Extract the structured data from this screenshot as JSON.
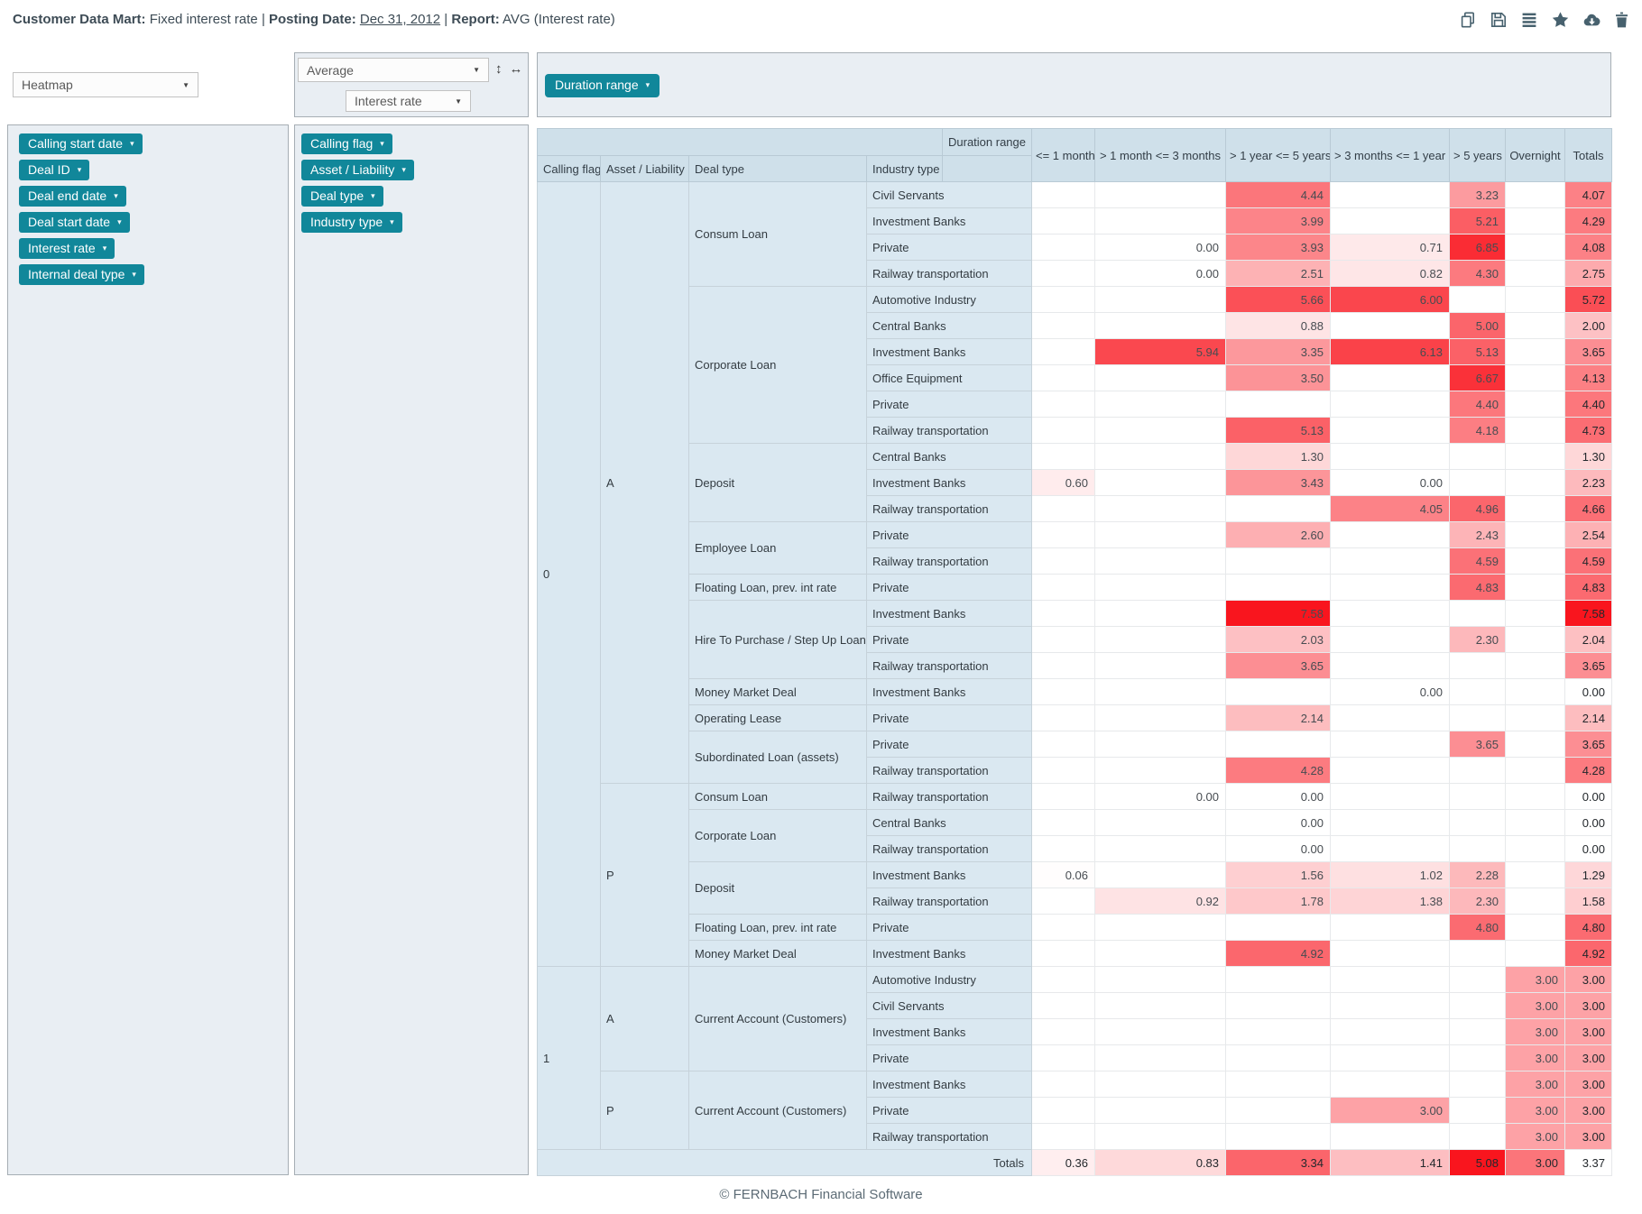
{
  "title": {
    "dataset_label": "Customer Data Mart:",
    "dataset_value": "Fixed interest rate",
    "separator": "|",
    "posting_date_label": "Posting Date:",
    "posting_date_value": "Dec 31, 2012",
    "report_label": "Report:",
    "report_value": "AVG (Interest rate)"
  },
  "toolbar_icons": [
    "copy-icon",
    "save-icon",
    "list-view-icon",
    "favorite-icon",
    "download-icon",
    "delete-icon"
  ],
  "controls": {
    "view_type": "Heatmap",
    "aggregation": "Average",
    "measure": "Interest rate",
    "resize_vertical_glyph": "↕",
    "resize_horizontal_glyph": "↔",
    "select_caret_glyph": "▼",
    "chip_caret_glyph": "▾"
  },
  "row_fields_panel": {
    "chips": [
      "Calling start date",
      "Deal ID",
      "Deal end date",
      "Deal start date",
      "Interest rate",
      "Internal deal type"
    ]
  },
  "pivot_fields_panel": {
    "chips": [
      "Calling flag",
      "Asset / Liability",
      "Deal type",
      "Industry type"
    ]
  },
  "column_fields_panel": {
    "chip": "Duration range"
  },
  "colors": {
    "accent_teal": "#11879a",
    "heat_red_max": "#f9151e",
    "header_blue": "#cfe0ea",
    "label_blue": "#dae8f1",
    "panel_gray": "#e9eef3",
    "icon_slate": "#47616e"
  },
  "chart_data": {
    "type": "heatmap",
    "title": "AVG (Interest rate)",
    "corner_label": "Duration range",
    "row_dimensions": [
      "Calling flag",
      "Asset / Liability",
      "Deal type",
      "Industry type"
    ],
    "columns": [
      "<= 1 month",
      "> 1 month <= 3 months",
      "> 1 year <= 5 years",
      "> 3 months <= 1 year",
      "> 5 years",
      "Overnight",
      "Totals"
    ],
    "heat_scale": {
      "min": 0,
      "max": 7.58
    },
    "rows": [
      [
        "0",
        "A",
        "Consum Loan",
        "Civil Servants",
        null,
        null,
        4.44,
        null,
        3.23,
        null,
        4.07
      ],
      [
        "0",
        "A",
        "Consum Loan",
        "Investment Banks",
        null,
        null,
        3.99,
        null,
        5.21,
        null,
        4.29
      ],
      [
        "0",
        "A",
        "Consum Loan",
        "Private",
        null,
        0.0,
        3.93,
        0.71,
        6.85,
        null,
        4.08
      ],
      [
        "0",
        "A",
        "Consum Loan",
        "Railway transportation",
        null,
        0.0,
        2.51,
        0.82,
        4.3,
        null,
        2.75
      ],
      [
        "0",
        "A",
        "Corporate Loan",
        "Automotive Industry",
        null,
        null,
        5.66,
        6.0,
        null,
        null,
        5.72
      ],
      [
        "0",
        "A",
        "Corporate Loan",
        "Central Banks",
        null,
        null,
        0.88,
        null,
        5.0,
        null,
        2.0
      ],
      [
        "0",
        "A",
        "Corporate Loan",
        "Investment Banks",
        null,
        5.94,
        3.35,
        6.13,
        5.13,
        null,
        3.65
      ],
      [
        "0",
        "A",
        "Corporate Loan",
        "Office Equipment",
        null,
        null,
        3.5,
        null,
        6.67,
        null,
        4.13
      ],
      [
        "0",
        "A",
        "Corporate Loan",
        "Private",
        null,
        null,
        null,
        null,
        4.4,
        null,
        4.4
      ],
      [
        "0",
        "A",
        "Corporate Loan",
        "Railway transportation",
        null,
        null,
        5.13,
        null,
        4.18,
        null,
        4.73
      ],
      [
        "0",
        "A",
        "Deposit",
        "Central Banks",
        null,
        null,
        1.3,
        null,
        null,
        null,
        1.3
      ],
      [
        "0",
        "A",
        "Deposit",
        "Investment Banks",
        0.6,
        null,
        3.43,
        0.0,
        null,
        null,
        2.23
      ],
      [
        "0",
        "A",
        "Deposit",
        "Railway transportation",
        null,
        null,
        null,
        4.05,
        4.96,
        null,
        4.66
      ],
      [
        "0",
        "A",
        "Employee Loan",
        "Private",
        null,
        null,
        2.6,
        null,
        2.43,
        null,
        2.54
      ],
      [
        "0",
        "A",
        "Employee Loan",
        "Railway transportation",
        null,
        null,
        null,
        null,
        4.59,
        null,
        4.59
      ],
      [
        "0",
        "A",
        "Floating Loan, prev. int rate",
        "Private",
        null,
        null,
        null,
        null,
        4.83,
        null,
        4.83
      ],
      [
        "0",
        "A",
        "Hire To Purchase / Step Up Loan",
        "Investment Banks",
        null,
        null,
        7.58,
        null,
        null,
        null,
        7.58
      ],
      [
        "0",
        "A",
        "Hire To Purchase / Step Up Loan",
        "Private",
        null,
        null,
        2.03,
        null,
        2.3,
        null,
        2.04
      ],
      [
        "0",
        "A",
        "Hire To Purchase / Step Up Loan",
        "Railway transportation",
        null,
        null,
        3.65,
        null,
        null,
        null,
        3.65
      ],
      [
        "0",
        "A",
        "Money Market Deal",
        "Investment Banks",
        null,
        null,
        null,
        0.0,
        null,
        null,
        0.0
      ],
      [
        "0",
        "A",
        "Operating Lease",
        "Private",
        null,
        null,
        2.14,
        null,
        null,
        null,
        2.14
      ],
      [
        "0",
        "A",
        "Subordinated Loan (assets)",
        "Private",
        null,
        null,
        null,
        null,
        3.65,
        null,
        3.65
      ],
      [
        "0",
        "A",
        "Subordinated Loan (assets)",
        "Railway transportation",
        null,
        null,
        4.28,
        null,
        null,
        null,
        4.28
      ],
      [
        "0",
        "P",
        "Consum Loan",
        "Railway transportation",
        null,
        0.0,
        0.0,
        null,
        null,
        null,
        0.0
      ],
      [
        "0",
        "P",
        "Corporate Loan",
        "Central Banks",
        null,
        null,
        0.0,
        null,
        null,
        null,
        0.0
      ],
      [
        "0",
        "P",
        "Corporate Loan",
        "Railway transportation",
        null,
        null,
        0.0,
        null,
        null,
        null,
        0.0
      ],
      [
        "0",
        "P",
        "Deposit",
        "Investment Banks",
        0.06,
        null,
        1.56,
        1.02,
        2.28,
        null,
        1.29
      ],
      [
        "0",
        "P",
        "Deposit",
        "Railway transportation",
        null,
        0.92,
        1.78,
        1.38,
        2.3,
        null,
        1.58
      ],
      [
        "0",
        "P",
        "Floating Loan, prev. int rate",
        "Private",
        null,
        null,
        null,
        null,
        4.8,
        null,
        4.8
      ],
      [
        "0",
        "P",
        "Money Market Deal",
        "Investment Banks",
        null,
        null,
        4.92,
        null,
        null,
        null,
        4.92
      ],
      [
        "1",
        "A",
        "Current Account (Customers)",
        "Automotive Industry",
        null,
        null,
        null,
        null,
        null,
        3.0,
        3.0
      ],
      [
        "1",
        "A",
        "Current Account (Customers)",
        "Civil Servants",
        null,
        null,
        null,
        null,
        null,
        3.0,
        3.0
      ],
      [
        "1",
        "A",
        "Current Account (Customers)",
        "Investment Banks",
        null,
        null,
        null,
        null,
        null,
        3.0,
        3.0
      ],
      [
        "1",
        "A",
        "Current Account (Customers)",
        "Private",
        null,
        null,
        null,
        null,
        null,
        3.0,
        3.0
      ],
      [
        "1",
        "P",
        "Current Account (Customers)",
        "Investment Banks",
        null,
        null,
        null,
        null,
        null,
        3.0,
        3.0
      ],
      [
        "1",
        "P",
        "Current Account (Customers)",
        "Private",
        null,
        null,
        null,
        3.0,
        null,
        3.0,
        3.0
      ],
      [
        "1",
        "P",
        "Current Account (Customers)",
        "Railway transportation",
        null,
        null,
        null,
        null,
        null,
        3.0,
        3.0
      ]
    ],
    "totals_row": {
      "label": "Totals",
      "values": [
        0.36,
        0.83,
        3.34,
        1.41,
        5.08,
        3.0,
        3.37
      ],
      "row_max": 5.08
    }
  },
  "footer": "© FERNBACH Financial Software"
}
